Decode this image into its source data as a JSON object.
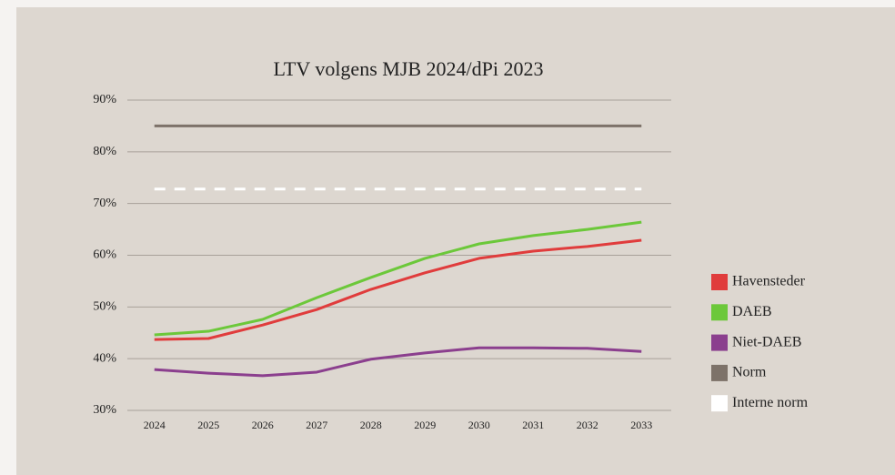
{
  "chart_data": {
    "type": "line",
    "title": "LTV volgens MJB 2024/dPi 2023",
    "categories": [
      "2024",
      "2025",
      "2026",
      "2027",
      "2028",
      "2029",
      "2030",
      "2031",
      "2032",
      "2033"
    ],
    "series": [
      {
        "name": "Havensteder",
        "color": "#e03c3c",
        "values": [
          43.7,
          43.9,
          46.5,
          49.5,
          53.4,
          56.6,
          59.4,
          60.8,
          61.7,
          62.9
        ]
      },
      {
        "name": "DAEB",
        "color": "#6cc83a",
        "values": [
          44.6,
          45.3,
          47.6,
          51.8,
          55.7,
          59.4,
          62.2,
          63.8,
          65.0,
          66.4
        ]
      },
      {
        "name": "Niet-DAEB",
        "color": "#8b3f8e",
        "values": [
          37.9,
          37.2,
          36.7,
          37.4,
          39.9,
          41.1,
          42.1,
          42.1,
          42.0,
          41.4
        ]
      },
      {
        "name": "Norm",
        "color": "#7d7269",
        "values": [
          85,
          85,
          85,
          85,
          85,
          85,
          85,
          85,
          85,
          85
        ]
      },
      {
        "name": "Interne norm",
        "color": "#ffffff",
        "dash": true,
        "values": [
          72.8,
          72.8,
          72.8,
          72.8,
          72.8,
          72.8,
          72.8,
          72.8,
          72.8,
          72.8
        ]
      }
    ],
    "ylim": [
      30,
      90
    ],
    "yticks": [
      {
        "value": 30,
        "label": "30%"
      },
      {
        "value": 40,
        "label": "40%"
      },
      {
        "value": 50,
        "label": "50%"
      },
      {
        "value": 60,
        "label": "60%"
      },
      {
        "value": 70,
        "label": "70%"
      },
      {
        "value": 80,
        "label": "80%"
      },
      {
        "value": 90,
        "label": "90%"
      }
    ],
    "grid": true,
    "legend": "right"
  }
}
